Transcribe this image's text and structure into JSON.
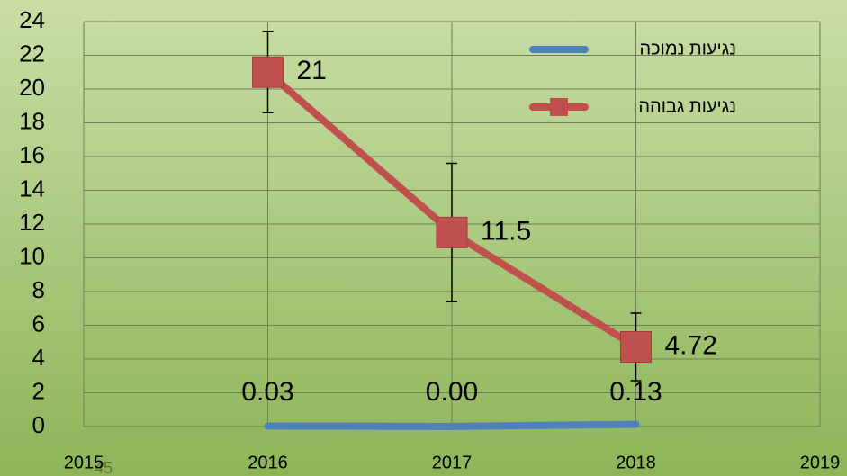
{
  "chart_data": {
    "type": "line",
    "x": [
      2016,
      2017,
      2018
    ],
    "xlim": [
      2015,
      2019
    ],
    "xticks": [
      2015,
      2016,
      2017,
      2018,
      2019
    ],
    "ylim": [
      0,
      24
    ],
    "yticks": [
      0,
      2,
      4,
      6,
      8,
      10,
      12,
      14,
      16,
      18,
      20,
      22,
      24
    ],
    "grid": true,
    "legend": "top-right",
    "series": [
      {
        "name": "נגיעות נמוכה",
        "color": "#4f81bd",
        "values": [
          0.03,
          0,
          0.13
        ],
        "value_labels": [
          "0.03",
          "0.00",
          "0.13"
        ]
      },
      {
        "name": "נגיעות גבוהה",
        "color": "#c0504d",
        "marker": "square",
        "values": [
          21,
          11.5,
          4.72
        ],
        "errors": [
          2.4,
          4.1,
          2.0
        ]
      }
    ],
    "page_number": "45"
  }
}
